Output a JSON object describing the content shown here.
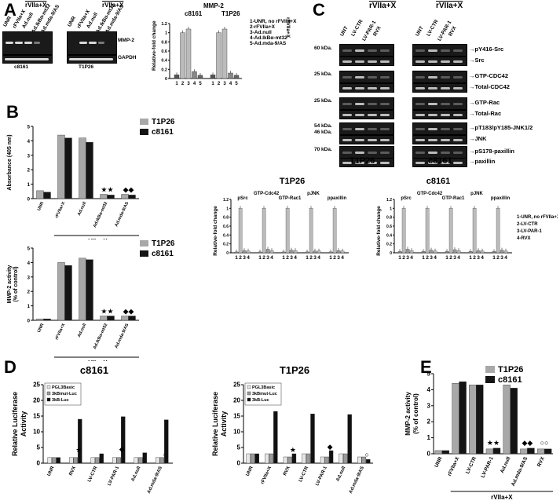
{
  "panels": {
    "A": "A",
    "B": "B",
    "C": "C",
    "D": "D",
    "E": "E"
  },
  "panelA": {
    "groups": [
      "rVIIa+X",
      "rVIIa+X"
    ],
    "lanes": [
      "UNR",
      "rFVIIa+X",
      "Ad.null",
      "Ad.IkBα-mt32",
      "Ad.mda-9/AS"
    ],
    "bands": [
      "MMP-2",
      "GAPDH"
    ],
    "cells": [
      "c8161",
      "T1P26"
    ],
    "chart_title": "MMP-2",
    "ylabel": "Relative-fold change",
    "key_title": "rFVIIa+X",
    "key": [
      "1-UNR, no rFVIIa+X",
      "2-rFVIIa+X",
      "3-Ad.null",
      "4-Ad.IkBα-mt32",
      "5-Ad.mda-9/AS"
    ]
  },
  "panelC": {
    "groups": [
      "rVIIa+X",
      "rVIIa+X"
    ],
    "lanes": [
      "UNT",
      "LV-CTR",
      "LV-PAR-1",
      "RVX"
    ],
    "mw": [
      "60 kDa.",
      "25 kDa.",
      "25 kDa.",
      "54 kDa.",
      "46 kDa.",
      "70 kDa."
    ],
    "labels": [
      "pY416-Src",
      "Src",
      "GTP-CDC42",
      "Total-CDC42",
      "GTP-Rac",
      "Total-Rac",
      "pT183/pY185-JNK1/2",
      "JNK",
      "pS178-paxillin",
      "paxillin"
    ],
    "cells": [
      "T1P26",
      "c8161"
    ],
    "key": [
      "1-UNR, no rFVIIa+X",
      "2-LV-CTR",
      "3-LV-PAR-1",
      "4-RVX"
    ]
  },
  "chart_data": [
    {
      "type": "bar",
      "title": "MMP-2",
      "ylabel": "Relative-fold change",
      "groups": [
        "c8161",
        "T1P26"
      ],
      "categories": [
        "1",
        "2",
        "3",
        "4",
        "5"
      ],
      "ylim": [
        0,
        1.2
      ],
      "series": [
        {
          "name": "c8161",
          "values": [
            0.08,
            1.0,
            1.08,
            0.15,
            0.07
          ]
        },
        {
          "name": "T1P26",
          "values": [
            0.08,
            1.0,
            1.08,
            0.12,
            0.07
          ]
        }
      ]
    },
    {
      "type": "bar",
      "xlabel": "rVIIa+X",
      "ylabel": "Absorbance (405 nm)",
      "ylim": [
        0,
        5
      ],
      "categories": [
        "UNR",
        "rFVIIa+X",
        "Ad.null",
        "Ad.IkBα-mt32",
        "Ad.mda-9/AS"
      ],
      "series": [
        {
          "name": "T1P26",
          "values": [
            0.55,
            4.4,
            4.2,
            0.3,
            0.3
          ]
        },
        {
          "name": "c8161",
          "values": [
            0.45,
            4.2,
            3.9,
            0.25,
            0.25
          ]
        }
      ]
    },
    {
      "type": "bar",
      "xlabel": "rVIIa+X",
      "ylabel": "MMP-2 activity (% of control)",
      "ylim": [
        0,
        5
      ],
      "categories": [
        "UNR",
        "rFVIIa+X",
        "Ad.null",
        "Ad.IkBα-mt32",
        "Ad.mda-9/AS"
      ],
      "series": [
        {
          "name": "T1P26",
          "values": [
            0.1,
            4.0,
            4.3,
            0.3,
            0.3
          ]
        },
        {
          "name": "c8161",
          "values": [
            0.1,
            3.8,
            4.2,
            0.3,
            0.3
          ]
        }
      ]
    },
    {
      "type": "bar",
      "title": "T1P26",
      "ylabel": "Relative-fold change",
      "ylim": [
        0,
        1.2
      ],
      "categories": [
        "pSrc",
        "GTP-Cdc42",
        "GTP-Rac1",
        "pJNK",
        "ppaxillin"
      ],
      "series": [
        {
          "name": "1",
          "values": [
            0.02,
            0.02,
            0.02,
            0.02,
            0.02
          ]
        },
        {
          "name": "2",
          "values": [
            1.0,
            1.0,
            1.0,
            1.0,
            1.0
          ]
        },
        {
          "name": "3",
          "values": [
            0.05,
            0.08,
            0.06,
            0.04,
            0.05
          ]
        },
        {
          "name": "4",
          "values": [
            0.04,
            0.05,
            0.05,
            0.04,
            0.04
          ]
        }
      ]
    },
    {
      "type": "bar",
      "title": "c8161",
      "ylabel": "Relative-fold change",
      "ylim": [
        0,
        1.2
      ],
      "categories": [
        "pSrc",
        "GTP-Cdc42",
        "GTP-Rac1",
        "pJNK",
        "ppaxillin"
      ],
      "series": [
        {
          "name": "1",
          "values": [
            0.03,
            0.03,
            0.03,
            0.03,
            0.03
          ]
        },
        {
          "name": "2",
          "values": [
            1.0,
            1.0,
            1.0,
            1.0,
            1.0
          ]
        },
        {
          "name": "3",
          "values": [
            0.08,
            0.06,
            0.07,
            0.05,
            0.06
          ]
        },
        {
          "name": "4",
          "values": [
            0.05,
            0.04,
            0.05,
            0.04,
            0.04
          ]
        }
      ]
    },
    {
      "type": "bar",
      "title": "c8161",
      "ylabel": "Relative Luciferase Activity",
      "ylim": [
        0,
        25
      ],
      "categories": [
        "UNR",
        "RVX",
        "LV-CTR",
        "LV-PAR-1",
        "Ad.null",
        "Ad.mda-9/AS"
      ],
      "series": [
        {
          "name": "PGL3Basic",
          "values": [
            1.8,
            1.8,
            1.8,
            1.8,
            1.8,
            1.8
          ]
        },
        {
          "name": "3kBmut-Luc",
          "values": [
            1.8,
            1.8,
            1.8,
            1.8,
            1.8,
            1.8
          ]
        },
        {
          "name": "3kB-Luc",
          "values": [
            1.8,
            14,
            3,
            14.8,
            3.3,
            13.8
          ]
        }
      ]
    },
    {
      "type": "bar",
      "title": "T1P26",
      "ylabel": "Relative Luciferase Activity",
      "ylim": [
        0,
        25
      ],
      "categories": [
        "UNR",
        "rFVIIa+X",
        "RVX",
        "LV-CTR",
        "LV-PAR-1",
        "Ad.null",
        "Ad.mda-9/AS"
      ],
      "series": [
        {
          "name": "PGL3Basic",
          "values": [
            3,
            3,
            2,
            3,
            2,
            3,
            2
          ]
        },
        {
          "name": "3kBmut-Luc",
          "values": [
            3,
            3,
            2,
            3,
            2,
            3,
            2
          ]
        },
        {
          "name": "3kB-Luc",
          "values": [
            3,
            16.5,
            3,
            15.7,
            4,
            15.5,
            1.2
          ]
        }
      ]
    },
    {
      "type": "bar",
      "xlabel": "rVIIa+X",
      "ylabel": "MMP-2 activity (% of control)",
      "ylim": [
        0,
        5
      ],
      "categories": [
        "UNR",
        "rFVIIa+X",
        "LV-CTR",
        "LV-PAR-1",
        "Ad.null",
        "Ad.mda-9/AS",
        "RVX"
      ],
      "series": [
        {
          "name": "T1P26",
          "values": [
            0.2,
            4.4,
            4.3,
            0.3,
            4.3,
            0.3,
            0.3
          ]
        },
        {
          "name": "c8161",
          "values": [
            0.2,
            4.5,
            4.3,
            0.35,
            4.1,
            0.35,
            0.3
          ]
        }
      ]
    }
  ],
  "colors": {
    "light": "#a8a8a8",
    "dark": "#141414",
    "mid": "#6e6e6e"
  }
}
